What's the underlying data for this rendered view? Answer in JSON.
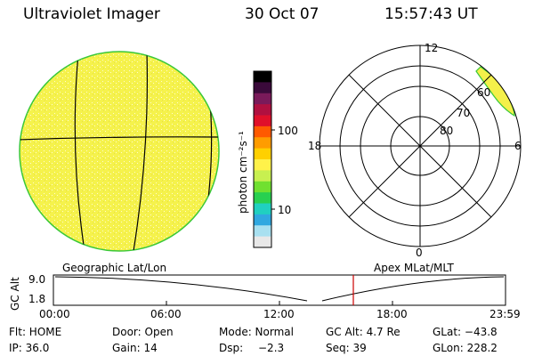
{
  "header": {
    "title": "Ultraviolet Imager",
    "date": "30 Oct 07",
    "time": "15:57:43 UT"
  },
  "globe": {
    "label": "Geographic Lat/Lon",
    "fill_color": "#f4f04a",
    "rim_color": "#39c839"
  },
  "colorbar": {
    "unit": "photon cm⁻²s⁻¹",
    "ticks": [
      "100",
      "10"
    ],
    "colors": [
      "#000000",
      "#3a0a3a",
      "#7a1a5a",
      "#b01040",
      "#e0102a",
      "#ff5a00",
      "#ff9c00",
      "#ffd000",
      "#fff24a",
      "#c8f050",
      "#70e030",
      "#28d050",
      "#20d0c0",
      "#30a8e0",
      "#a8e0f0",
      "#e8e8e8"
    ]
  },
  "polar": {
    "label": "Apex MLat/MLT",
    "mlt_labels": [
      "12",
      "18",
      "6",
      "0"
    ],
    "lat_labels": [
      "60",
      "70",
      "80"
    ],
    "aurora_color": "#f4f04a"
  },
  "altitude": {
    "axis_label": "GC Alt",
    "ticks": [
      "9.0",
      "1.8"
    ],
    "time_labels": [
      "00:00",
      "06:00",
      "12:00",
      "18:00",
      "23:59"
    ],
    "current_time_marker": "15:57",
    "marker_color": "#cc0000"
  },
  "status": {
    "flt": "Flt: HOME",
    "door": "Door: Open",
    "mode": "Mode: Normal",
    "gc_alt": "GC Alt: 4.7 Re",
    "glat": "GLat: −43.8",
    "ip": "IP: 36.0",
    "gain": "Gain: 14",
    "dsp_label": "Dsp:",
    "dsp_value": "−2.3",
    "seq": "Seq: 39",
    "glon": "GLon: 228.2"
  }
}
